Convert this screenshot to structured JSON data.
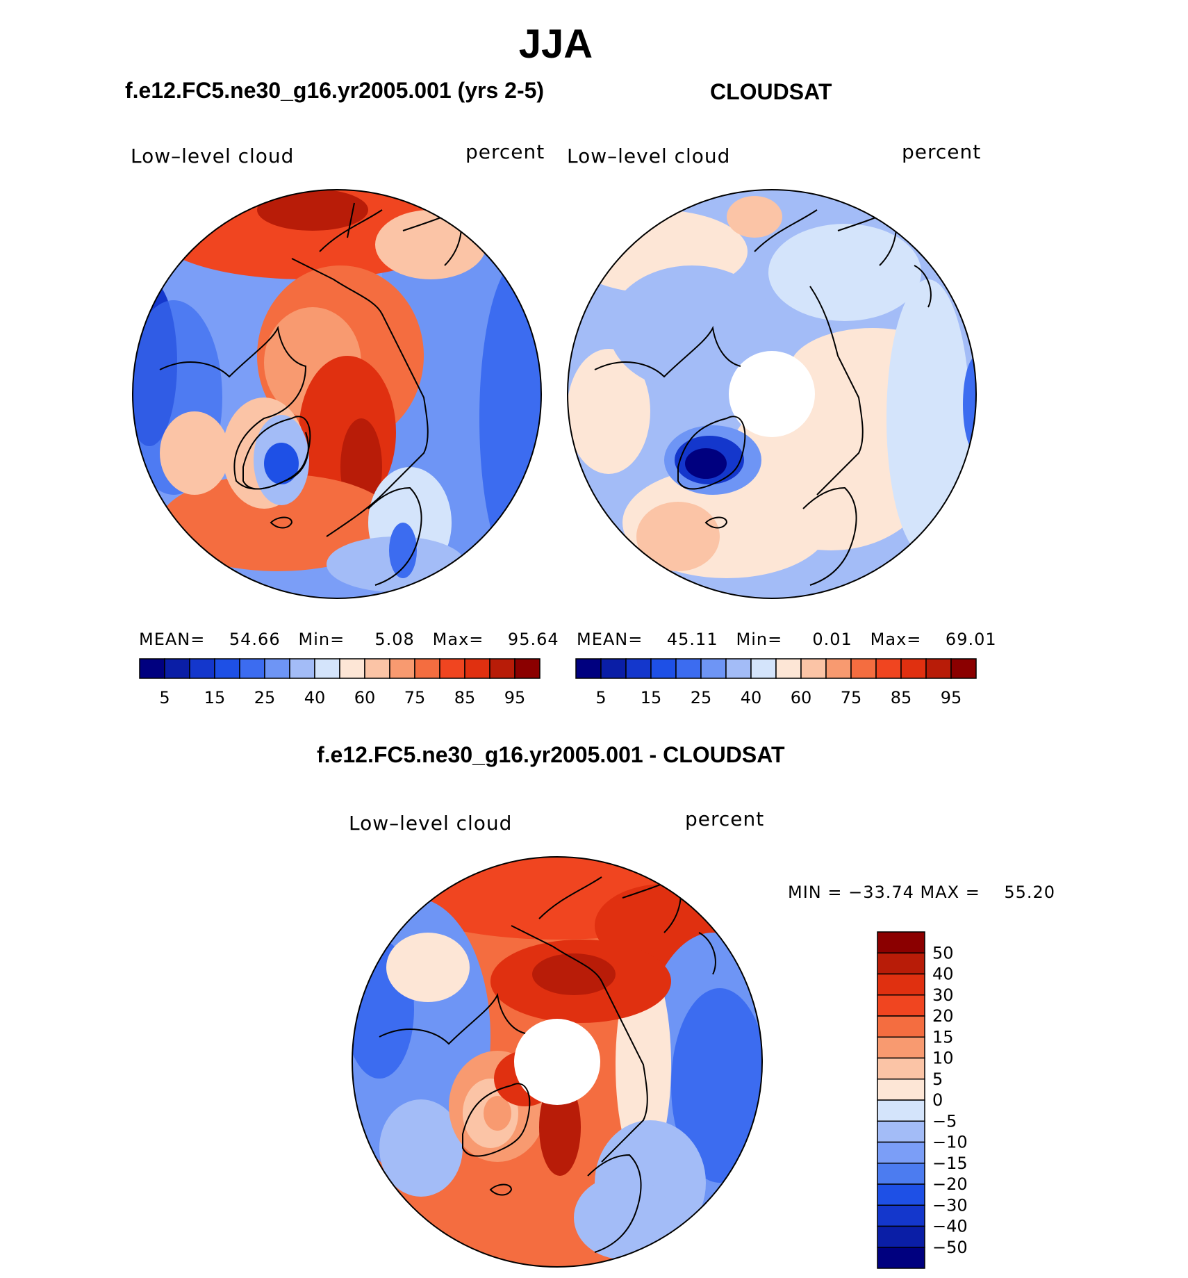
{
  "title": "JJA",
  "panels": [
    {
      "id": "model",
      "title": "f.e12.FC5.ne30_g16.yr2005.001 (yrs 2-5)",
      "left_label": "Low–level cloud",
      "right_label": "percent",
      "stats": {
        "mean_label": "MEAN=",
        "mean": "54.66",
        "min_label": "Min=",
        "min": "5.08",
        "max_label": "Max=",
        "max": "95.64"
      }
    },
    {
      "id": "obs",
      "title": "CLOUDSAT",
      "left_label": "Low–level cloud",
      "right_label": "percent",
      "stats": {
        "mean_label": "MEAN=",
        "mean": "45.11",
        "min_label": "Min=",
        "min": "0.01",
        "max_label": "Max=",
        "max": "69.01"
      }
    }
  ],
  "hcolorbar": {
    "colors": [
      "#00007f",
      "#0a1ea6",
      "#1437cc",
      "#1e50e6",
      "#3c6cf0",
      "#6e95f5",
      "#a3bcf7",
      "#d4e4fb",
      "#fde6d6",
      "#fbc4a6",
      "#f89a70",
      "#f46d40",
      "#f04520",
      "#e03010",
      "#b81c08",
      "#8b0000"
    ],
    "tick_labels": [
      "5",
      "15",
      "25",
      "40",
      "60",
      "75",
      "85",
      "95"
    ]
  },
  "diff_panel": {
    "title": "f.e12.FC5.ne30_g16.yr2005.001 - CLOUDSAT",
    "left_label": "Low–level cloud",
    "right_label": "percent",
    "minmax": "MIN = −33.74 MAX =    55.20"
  },
  "vcolorbar": {
    "colors": [
      "#8b0000",
      "#b81c08",
      "#e03010",
      "#f04520",
      "#f46d40",
      "#f89a70",
      "#fbc4a6",
      "#fde6d6",
      "#d4e4fb",
      "#a3bcf7",
      "#7b9ef7",
      "#4c7cf0",
      "#1e50e6",
      "#1437cc",
      "#0a1ea6",
      "#00007f"
    ],
    "tick_labels": [
      "50",
      "40",
      "30",
      "20",
      "15",
      "10",
      "5",
      "0",
      "−5",
      "−10",
      "−15",
      "−20",
      "−30",
      "−40",
      "−50"
    ]
  }
}
